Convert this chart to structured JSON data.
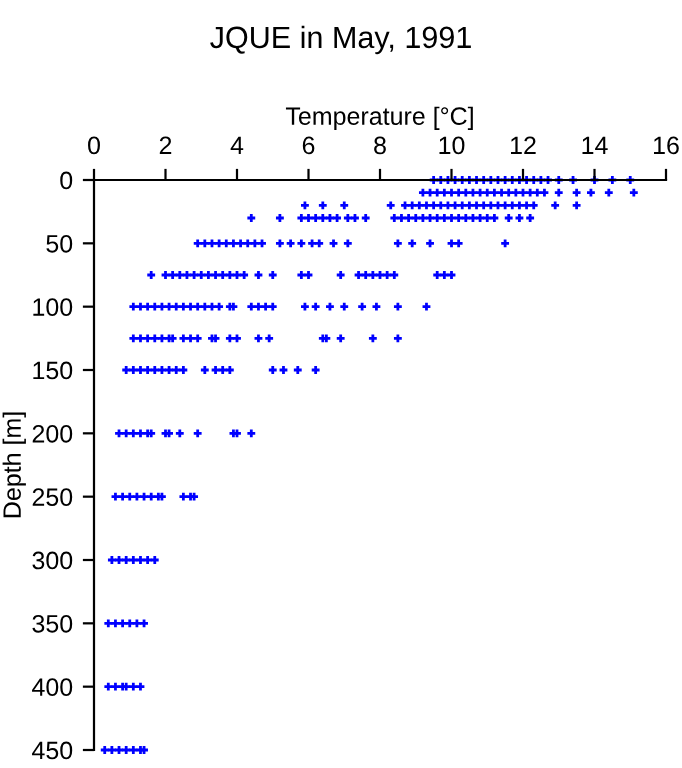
{
  "chart_data": {
    "type": "scatter",
    "title": "JQUE in May, 1991",
    "xlabel": "Temperature [°C]",
    "ylabel": "Depth [m]",
    "xlim": [
      0,
      16
    ],
    "xticks": [
      0,
      2,
      4,
      6,
      8,
      10,
      12,
      14,
      16
    ],
    "ylim": [
      450,
      0
    ],
    "yticks": [
      0,
      50,
      100,
      150,
      200,
      250,
      300,
      350,
      400,
      450
    ],
    "grid": false,
    "marker": "cross",
    "series": [
      {
        "color": "#0000ff",
        "x": [
          9.5,
          9.7,
          9.9,
          10.1,
          10.3,
          10.5,
          10.7,
          10.9,
          11.1,
          11.3,
          11.5,
          11.7,
          11.9,
          12.1,
          12.3,
          12.5,
          12.7,
          13.0,
          13.4,
          14.0,
          14.5,
          15.0
        ],
        "values": [
          0,
          0,
          0,
          0,
          0,
          0,
          0,
          0,
          0,
          0,
          0,
          0,
          0,
          0,
          0,
          0,
          0,
          0,
          0,
          0,
          0,
          0
        ]
      },
      {
        "color": "#0000ff",
        "x": [
          9.2,
          9.4,
          9.6,
          9.8,
          10.0,
          10.2,
          10.4,
          10.6,
          10.8,
          11.0,
          11.2,
          11.4,
          11.6,
          11.8,
          12.0,
          12.2,
          12.4,
          12.6,
          13.0,
          13.5,
          13.9,
          14.4,
          15.1
        ],
        "values": [
          10,
          10,
          10,
          10,
          10,
          10,
          10,
          10,
          10,
          10,
          10,
          10,
          10,
          10,
          10,
          10,
          10,
          10,
          10,
          10,
          10,
          10,
          10
        ]
      },
      {
        "color": "#0000ff",
        "x": [
          5.9,
          6.4,
          7.0,
          8.3,
          8.7,
          8.9,
          9.1,
          9.3,
          9.5,
          9.7,
          9.9,
          10.1,
          10.3,
          10.5,
          10.7,
          10.9,
          11.1,
          11.3,
          11.5,
          11.7,
          11.9,
          12.1,
          12.3,
          12.9,
          13.5
        ],
        "values": [
          20,
          20,
          20,
          20,
          20,
          20,
          20,
          20,
          20,
          20,
          20,
          20,
          20,
          20,
          20,
          20,
          20,
          20,
          20,
          20,
          20,
          20,
          20,
          20,
          20
        ]
      },
      {
        "color": "#0000ff",
        "x": [
          4.4,
          5.2,
          5.8,
          6.0,
          6.2,
          6.4,
          6.6,
          6.8,
          7.1,
          7.3,
          7.6,
          8.4,
          8.6,
          8.8,
          9.0,
          9.2,
          9.4,
          9.6,
          9.8,
          10.0,
          10.2,
          10.4,
          10.6,
          10.8,
          11.0,
          11.2,
          11.6,
          11.9,
          12.2
        ],
        "values": [
          30,
          30,
          30,
          30,
          30,
          30,
          30,
          30,
          30,
          30,
          30,
          30,
          30,
          30,
          30,
          30,
          30,
          30,
          30,
          30,
          30,
          30,
          30,
          30,
          30,
          30,
          30,
          30,
          30
        ]
      },
      {
        "color": "#0000ff",
        "x": [
          2.9,
          3.1,
          3.3,
          3.5,
          3.7,
          3.9,
          4.1,
          4.3,
          4.5,
          4.7,
          5.2,
          5.5,
          5.8,
          6.1,
          6.3,
          6.7,
          7.1,
          8.5,
          8.9,
          9.4,
          10.0,
          10.2,
          11.5
        ],
        "values": [
          50,
          50,
          50,
          50,
          50,
          50,
          50,
          50,
          50,
          50,
          50,
          50,
          50,
          50,
          50,
          50,
          50,
          50,
          50,
          50,
          50,
          50,
          50
        ]
      },
      {
        "color": "#0000ff",
        "x": [
          1.6,
          2.0,
          2.2,
          2.4,
          2.6,
          2.8,
          3.0,
          3.2,
          3.4,
          3.6,
          3.8,
          4.0,
          4.2,
          4.6,
          5.0,
          5.8,
          6.0,
          6.9,
          7.4,
          7.6,
          7.8,
          8.0,
          8.2,
          8.4,
          9.6,
          9.8,
          10.0
        ],
        "values": [
          75,
          75,
          75,
          75,
          75,
          75,
          75,
          75,
          75,
          75,
          75,
          75,
          75,
          75,
          75,
          75,
          75,
          75,
          75,
          75,
          75,
          75,
          75,
          75,
          75,
          75,
          75
        ]
      },
      {
        "color": "#0000ff",
        "x": [
          1.1,
          1.3,
          1.5,
          1.7,
          1.9,
          2.1,
          2.3,
          2.5,
          2.7,
          2.9,
          3.1,
          3.3,
          3.5,
          3.8,
          3.9,
          4.4,
          4.6,
          4.8,
          5.0,
          5.9,
          6.2,
          6.6,
          7.0,
          7.5,
          7.9,
          8.5,
          9.3
        ],
        "values": [
          100,
          100,
          100,
          100,
          100,
          100,
          100,
          100,
          100,
          100,
          100,
          100,
          100,
          100,
          100,
          100,
          100,
          100,
          100,
          100,
          100,
          100,
          100,
          100,
          100,
          100,
          100
        ]
      },
      {
        "color": "#0000ff",
        "x": [
          1.1,
          1.3,
          1.5,
          1.7,
          1.9,
          2.1,
          2.2,
          2.5,
          2.7,
          2.9,
          3.3,
          3.4,
          3.8,
          4.0,
          4.6,
          4.9,
          6.4,
          6.5,
          6.9,
          7.8,
          8.5
        ],
        "values": [
          125,
          125,
          125,
          125,
          125,
          125,
          125,
          125,
          125,
          125,
          125,
          125,
          125,
          125,
          125,
          125,
          125,
          125,
          125,
          125,
          125
        ]
      },
      {
        "color": "#0000ff",
        "x": [
          0.9,
          1.1,
          1.3,
          1.5,
          1.7,
          1.9,
          2.1,
          2.3,
          2.5,
          3.1,
          3.4,
          3.6,
          3.8,
          5.0,
          5.3,
          5.7,
          6.2
        ],
        "values": [
          150,
          150,
          150,
          150,
          150,
          150,
          150,
          150,
          150,
          150,
          150,
          150,
          150,
          150,
          150,
          150,
          150
        ]
      },
      {
        "color": "#0000ff",
        "x": [
          0.7,
          0.9,
          1.1,
          1.3,
          1.5,
          1.6,
          2.0,
          2.1,
          2.4,
          2.9,
          3.9,
          4.0,
          4.4
        ],
        "values": [
          200,
          200,
          200,
          200,
          200,
          200,
          200,
          200,
          200,
          200,
          200,
          200,
          200
        ]
      },
      {
        "color": "#0000ff",
        "x": [
          0.6,
          0.8,
          1.0,
          1.2,
          1.4,
          1.6,
          1.8,
          1.9,
          2.5,
          2.7,
          2.8
        ],
        "values": [
          250,
          250,
          250,
          250,
          250,
          250,
          250,
          250,
          250,
          250,
          250
        ]
      },
      {
        "color": "#0000ff",
        "x": [
          0.5,
          0.7,
          0.9,
          1.1,
          1.3,
          1.5,
          1.7
        ],
        "values": [
          300,
          300,
          300,
          300,
          300,
          300,
          300
        ]
      },
      {
        "color": "#0000ff",
        "x": [
          0.4,
          0.6,
          0.8,
          1.0,
          1.2,
          1.4
        ],
        "values": [
          350,
          350,
          350,
          350,
          350,
          350
        ]
      },
      {
        "color": "#0000ff",
        "x": [
          0.4,
          0.6,
          0.8,
          0.9,
          1.1,
          1.3
        ],
        "values": [
          400,
          400,
          400,
          400,
          400,
          400
        ]
      },
      {
        "color": "#0000ff",
        "x": [
          0.3,
          0.5,
          0.7,
          0.9,
          1.1,
          1.3,
          1.4
        ],
        "values": [
          450,
          450,
          450,
          450,
          450,
          450,
          450
        ]
      }
    ]
  }
}
